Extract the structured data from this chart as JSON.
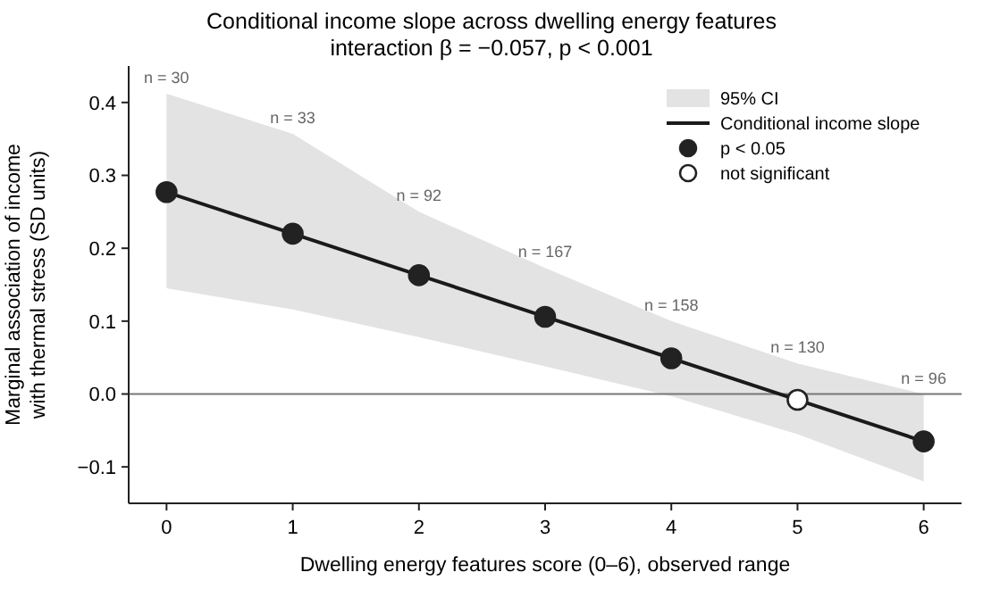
{
  "chart_data": {
    "type": "line",
    "title": "Conditional income slope across dwelling energy features",
    "subtitle": "interaction β = −0.057, p < 0.001",
    "xlabel": "Dwelling energy features score (0–6), observed range",
    "ylabel": "Marginal association of income\nwith thermal stress (SD units)",
    "x": [
      0,
      1,
      2,
      3,
      4,
      5,
      6
    ],
    "xlim": [
      -0.3,
      6.3
    ],
    "xticks": [
      0,
      1,
      2,
      3,
      4,
      5,
      6
    ],
    "ylim": [
      -0.15,
      0.45
    ],
    "yticks": [
      -0.1,
      {
        "value": 0,
        "label": "0.0"
      },
      0.1,
      0.2,
      0.3,
      0.4
    ],
    "series": [
      {
        "name": "Conditional income slope",
        "color": "#1a1a1a",
        "values": [
          0.277,
          0.22,
          0.163,
          0.106,
          0.049,
          -0.008,
          -0.065
        ],
        "marker": "none",
        "lower": [
          0.145,
          0.116,
          0.078,
          0.038,
          -0.003,
          -0.055,
          -0.12
        ],
        "upper": [
          0.412,
          0.357,
          0.25,
          0.173,
          0.1,
          0.042,
          0.0
        ]
      },
      {
        "name": "p < 0.05",
        "type": "scatter",
        "color": "#222222",
        "values": [
          0.277,
          0.22,
          0.163,
          0.106,
          0.049,
          null,
          -0.065
        ],
        "marker": "circle"
      },
      {
        "name": "not significant",
        "type": "scatter",
        "color": "#ffffff",
        "values": [
          null,
          null,
          null,
          null,
          null,
          -0.008,
          null
        ],
        "marker": "circle"
      }
    ],
    "ref_lines": [
      {
        "axis": "y",
        "value": 0,
        "color": "#777777"
      }
    ],
    "annotations": [
      "n = 30",
      "n = 33",
      "n = 92",
      "n = 167",
      "n = 158",
      "n = 130",
      "n = 96",
      "95% CI"
    ],
    "grid": false,
    "legend": "top right"
  }
}
